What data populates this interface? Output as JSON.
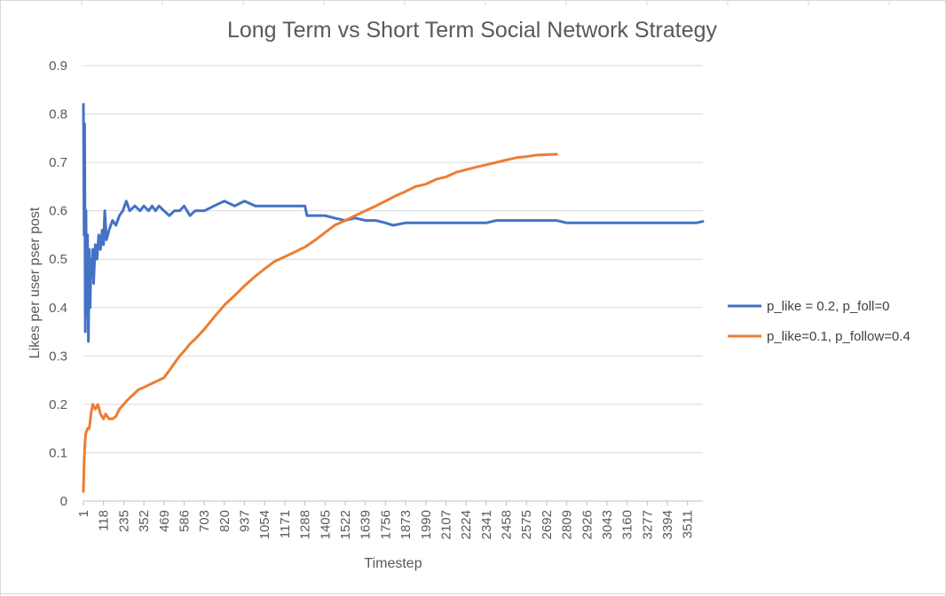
{
  "chart_data": {
    "type": "line",
    "title": "Long Term vs Short Term Social Network Strategy",
    "xlabel": "Timestep",
    "ylabel": "Likes per user pser post",
    "x_tick_labels": [
      "1",
      "118",
      "235",
      "352",
      "469",
      "586",
      "703",
      "820",
      "937",
      "1054",
      "1171",
      "1288",
      "1405",
      "1522",
      "1639",
      "1756",
      "1873",
      "1990",
      "2107",
      "2224",
      "2341",
      "2458",
      "2575",
      "2692",
      "2809",
      "2926",
      "3043",
      "3160",
      "3277",
      "3394",
      "3511"
    ],
    "x_tick_values": [
      1,
      118,
      235,
      352,
      469,
      586,
      703,
      820,
      937,
      1054,
      1171,
      1288,
      1405,
      1522,
      1639,
      1756,
      1873,
      1990,
      2107,
      2224,
      2341,
      2458,
      2575,
      2692,
      2809,
      2926,
      3043,
      3160,
      3277,
      3394,
      3511
    ],
    "xlim": [
      1,
      3600
    ],
    "y_tick_labels": [
      "0",
      "0.1",
      "0.2",
      "0.3",
      "0.4",
      "0.5",
      "0.6",
      "0.7",
      "0.8",
      "0.9"
    ],
    "ylim": [
      0,
      0.9
    ],
    "grid": "horizontal",
    "legend_position": "right",
    "series": [
      {
        "name": "p_like = 0.2, p_foll=0",
        "color": "#4472C4",
        "points": [
          [
            1,
            0.82
          ],
          [
            5,
            0.55
          ],
          [
            8,
            0.78
          ],
          [
            12,
            0.35
          ],
          [
            16,
            0.6
          ],
          [
            20,
            0.38
          ],
          [
            25,
            0.55
          ],
          [
            30,
            0.33
          ],
          [
            35,
            0.52
          ],
          [
            40,
            0.4
          ],
          [
            45,
            0.5
          ],
          [
            50,
            0.47
          ],
          [
            55,
            0.52
          ],
          [
            60,
            0.45
          ],
          [
            70,
            0.53
          ],
          [
            80,
            0.5
          ],
          [
            90,
            0.55
          ],
          [
            100,
            0.52
          ],
          [
            110,
            0.56
          ],
          [
            118,
            0.53
          ],
          [
            125,
            0.6
          ],
          [
            135,
            0.54
          ],
          [
            150,
            0.56
          ],
          [
            170,
            0.58
          ],
          [
            190,
            0.57
          ],
          [
            210,
            0.59
          ],
          [
            230,
            0.6
          ],
          [
            250,
            0.62
          ],
          [
            270,
            0.6
          ],
          [
            300,
            0.61
          ],
          [
            330,
            0.6
          ],
          [
            352,
            0.61
          ],
          [
            380,
            0.6
          ],
          [
            400,
            0.61
          ],
          [
            420,
            0.6
          ],
          [
            440,
            0.61
          ],
          [
            469,
            0.6
          ],
          [
            500,
            0.59
          ],
          [
            530,
            0.6
          ],
          [
            560,
            0.6
          ],
          [
            586,
            0.61
          ],
          [
            620,
            0.59
          ],
          [
            650,
            0.6
          ],
          [
            703,
            0.6
          ],
          [
            760,
            0.61
          ],
          [
            820,
            0.62
          ],
          [
            880,
            0.61
          ],
          [
            937,
            0.62
          ],
          [
            1000,
            0.61
          ],
          [
            1054,
            0.61
          ],
          [
            1110,
            0.61
          ],
          [
            1171,
            0.61
          ],
          [
            1230,
            0.61
          ],
          [
            1288,
            0.61
          ],
          [
            1300,
            0.59
          ],
          [
            1350,
            0.59
          ],
          [
            1405,
            0.59
          ],
          [
            1460,
            0.585
          ],
          [
            1522,
            0.58
          ],
          [
            1580,
            0.585
          ],
          [
            1639,
            0.58
          ],
          [
            1700,
            0.58
          ],
          [
            1756,
            0.575
          ],
          [
            1800,
            0.57
          ],
          [
            1873,
            0.575
          ],
          [
            1930,
            0.575
          ],
          [
            1990,
            0.575
          ],
          [
            2050,
            0.575
          ],
          [
            2107,
            0.575
          ],
          [
            2170,
            0.575
          ],
          [
            2224,
            0.575
          ],
          [
            2280,
            0.575
          ],
          [
            2341,
            0.575
          ],
          [
            2400,
            0.58
          ],
          [
            2458,
            0.58
          ],
          [
            2520,
            0.58
          ],
          [
            2575,
            0.58
          ],
          [
            2640,
            0.58
          ],
          [
            2692,
            0.58
          ],
          [
            2750,
            0.58
          ],
          [
            2809,
            0.575
          ],
          [
            2870,
            0.575
          ],
          [
            2926,
            0.575
          ],
          [
            2990,
            0.575
          ],
          [
            3043,
            0.575
          ],
          [
            3100,
            0.575
          ],
          [
            3160,
            0.575
          ],
          [
            3220,
            0.575
          ],
          [
            3277,
            0.575
          ],
          [
            3340,
            0.575
          ],
          [
            3394,
            0.575
          ],
          [
            3450,
            0.575
          ],
          [
            3511,
            0.575
          ],
          [
            3560,
            0.575
          ],
          [
            3600,
            0.578
          ]
        ]
      },
      {
        "name": "p_like=0.1, p_follow=0.4",
        "color": "#ED7D31",
        "points": [
          [
            1,
            0.02
          ],
          [
            5,
            0.08
          ],
          [
            10,
            0.12
          ],
          [
            15,
            0.14
          ],
          [
            25,
            0.15
          ],
          [
            35,
            0.15
          ],
          [
            45,
            0.18
          ],
          [
            55,
            0.2
          ],
          [
            70,
            0.19
          ],
          [
            85,
            0.2
          ],
          [
            100,
            0.18
          ],
          [
            118,
            0.17
          ],
          [
            130,
            0.18
          ],
          [
            150,
            0.17
          ],
          [
            170,
            0.17
          ],
          [
            190,
            0.175
          ],
          [
            210,
            0.19
          ],
          [
            235,
            0.2
          ],
          [
            260,
            0.21
          ],
          [
            290,
            0.22
          ],
          [
            320,
            0.23
          ],
          [
            352,
            0.235
          ],
          [
            380,
            0.24
          ],
          [
            410,
            0.245
          ],
          [
            440,
            0.25
          ],
          [
            469,
            0.255
          ],
          [
            500,
            0.27
          ],
          [
            530,
            0.285
          ],
          [
            560,
            0.3
          ],
          [
            586,
            0.31
          ],
          [
            620,
            0.325
          ],
          [
            650,
            0.335
          ],
          [
            703,
            0.355
          ],
          [
            760,
            0.38
          ],
          [
            820,
            0.405
          ],
          [
            880,
            0.425
          ],
          [
            937,
            0.445
          ],
          [
            1000,
            0.465
          ],
          [
            1054,
            0.48
          ],
          [
            1110,
            0.495
          ],
          [
            1171,
            0.505
          ],
          [
            1230,
            0.515
          ],
          [
            1288,
            0.525
          ],
          [
            1350,
            0.54
          ],
          [
            1405,
            0.555
          ],
          [
            1460,
            0.57
          ],
          [
            1522,
            0.58
          ],
          [
            1580,
            0.59
          ],
          [
            1639,
            0.6
          ],
          [
            1700,
            0.61
          ],
          [
            1756,
            0.62
          ],
          [
            1810,
            0.63
          ],
          [
            1873,
            0.64
          ],
          [
            1930,
            0.65
          ],
          [
            1990,
            0.655
          ],
          [
            2050,
            0.665
          ],
          [
            2107,
            0.67
          ],
          [
            2170,
            0.68
          ],
          [
            2224,
            0.685
          ],
          [
            2280,
            0.69
          ],
          [
            2341,
            0.695
          ],
          [
            2400,
            0.7
          ],
          [
            2458,
            0.705
          ],
          [
            2520,
            0.71
          ],
          [
            2575,
            0.712
          ],
          [
            2630,
            0.715
          ],
          [
            2692,
            0.716
          ],
          [
            2750,
            0.717
          ]
        ]
      }
    ]
  }
}
